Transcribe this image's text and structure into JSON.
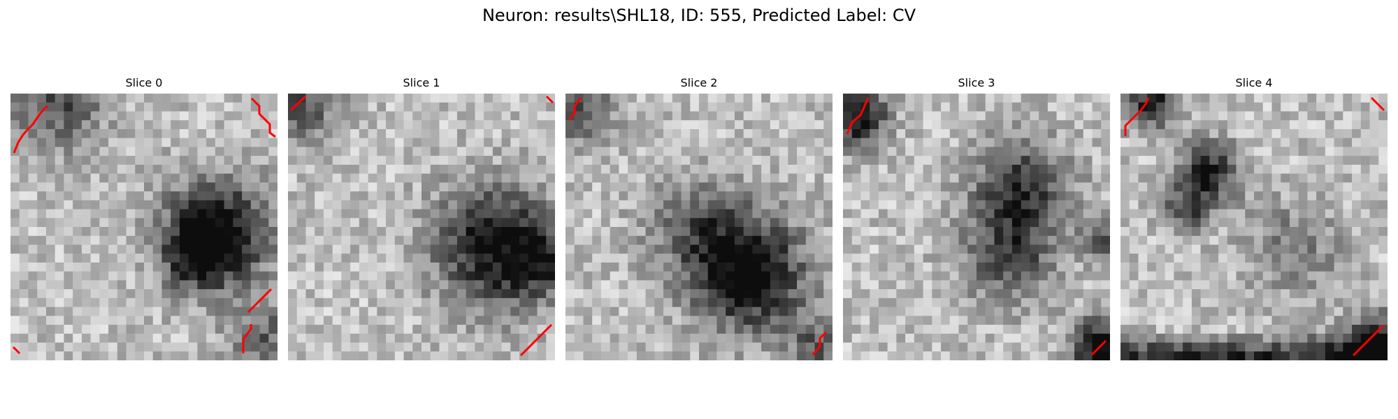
{
  "figure": {
    "title": "Neuron: results\\SHL18, ID: 555, Predicted Label: CV",
    "image_style": "grayscale-noise-patches",
    "overlay_color": "#ff0000"
  },
  "slices": [
    {
      "label": "Slice 0"
    },
    {
      "label": "Slice 1"
    },
    {
      "label": "Slice 2"
    },
    {
      "label": "Slice 3"
    },
    {
      "label": "Slice 4"
    }
  ]
}
